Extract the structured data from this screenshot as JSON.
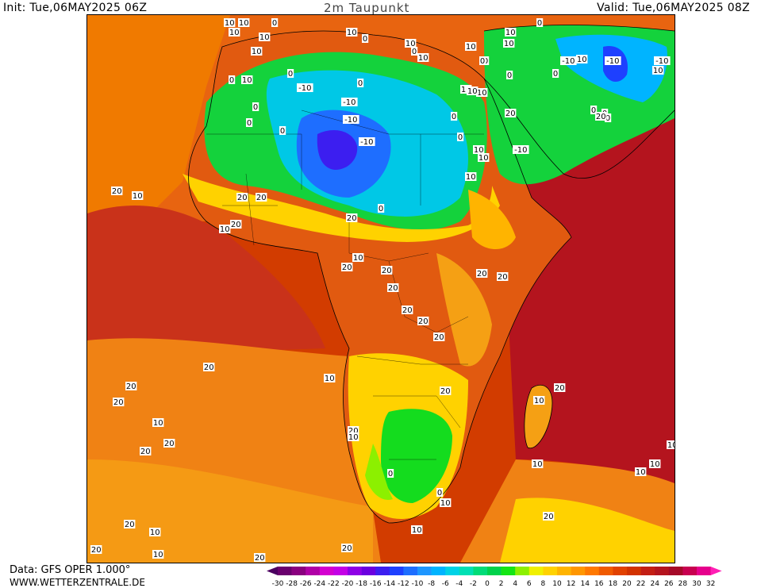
{
  "header": {
    "init": "Init: Tue,06MAY2025 06Z",
    "title": "2m Taupunkt",
    "valid": "Valid: Tue,06MAY2025 08Z"
  },
  "footer": {
    "data_source": "Data: GFS OPER 1.000°",
    "website": "WWW.WETTERZENTRALE.DE"
  },
  "legend": {
    "ticks": [
      "-30",
      "-28",
      "-26",
      "-24",
      "-22",
      "-20",
      "-18",
      "-16",
      "-14",
      "-12",
      "-10",
      "-8",
      "-6",
      "-4",
      "-2",
      "0",
      "2",
      "4",
      "6",
      "8",
      "10",
      "12",
      "14",
      "16",
      "18",
      "20",
      "22",
      "24",
      "26",
      "28",
      "30",
      "32"
    ],
    "colors": [
      "#4b0060",
      "#6a006e",
      "#8a007f",
      "#b000a6",
      "#d400d0",
      "#c400e6",
      "#8e00e6",
      "#6a00e0",
      "#3c1ef0",
      "#1e40ff",
      "#1e6eff",
      "#1e96ff",
      "#00b4ff",
      "#00d2e6",
      "#00e0b4",
      "#00dc78",
      "#00d24b",
      "#14e614",
      "#8cf000",
      "#f0f000",
      "#ffd200",
      "#ffb400",
      "#ff9600",
      "#ff7800",
      "#f05a00",
      "#e14100",
      "#d23200",
      "#c31e14",
      "#b4141e",
      "#a50a28",
      "#c80050",
      "#e6008c",
      "#ff1eb4"
    ]
  },
  "map": {
    "contour_labels": [
      "10",
      "10",
      "0",
      "10",
      "10",
      "10",
      "0",
      "10",
      "0",
      "10",
      "0",
      "10",
      "0",
      "10",
      "10",
      "10",
      "0",
      "0",
      "10",
      "-10",
      "-10",
      "0",
      "0",
      "-10",
      "10",
      "0",
      "10",
      "0",
      "-10",
      "0",
      "-10",
      "0",
      "10",
      "-10",
      "0",
      "-10",
      "10",
      "10",
      "20",
      "0",
      "0",
      "10",
      "10",
      "10",
      "-10",
      "0",
      "0",
      "0",
      "20",
      "20",
      "10",
      "20",
      "20",
      "20",
      "10",
      "20",
      "0",
      "10",
      "20",
      "20",
      "20",
      "20",
      "20",
      "20",
      "20",
      "20",
      "20",
      "20",
      "20",
      "10",
      "20",
      "20",
      "10",
      "20",
      "20",
      "10",
      "20",
      "10",
      "0",
      "0",
      "10",
      "10",
      "10",
      "10",
      "10",
      "20",
      "10",
      "20",
      "10",
      "10",
      "20",
      "20",
      "20"
    ]
  }
}
